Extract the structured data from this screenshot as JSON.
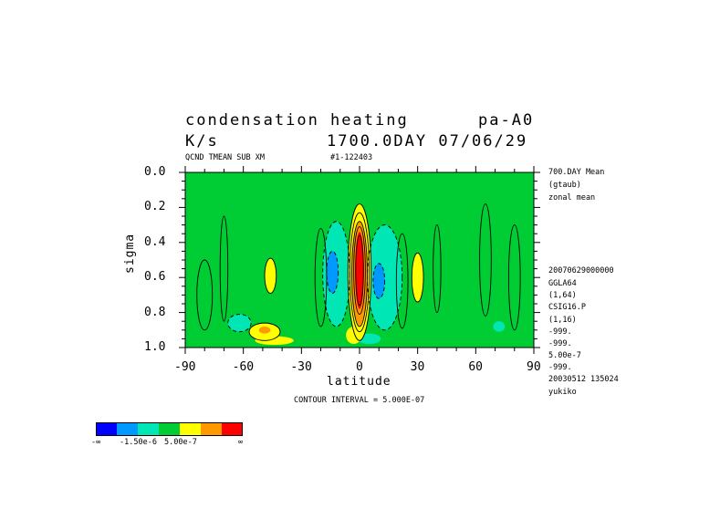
{
  "chart_data": {
    "type": "contour",
    "title_line1_left": "condensation heating",
    "title_line1_right": "pa-A0",
    "title_line2_left": "K/s",
    "title_line2_right": "1700.0DAY 07/06/29",
    "subtitle_left": "QCND TMEAN SUB XM",
    "subtitle_right": "#1-122403",
    "xlabel": "latitude",
    "ylabel": "sigma",
    "x_ticks": [
      "-90",
      "-60",
      "-30",
      "0",
      "30",
      "60",
      "90"
    ],
    "y_ticks": [
      "0.0",
      "0.2",
      "0.4",
      "0.6",
      "0.8",
      "1.0"
    ],
    "x_range": [
      -90,
      90
    ],
    "y_range": [
      0.0,
      1.0
    ],
    "y_inverted": true,
    "contour_interval_text": "CONTOUR INTERVAL = 5.000E-07",
    "right_annotations": [
      "700.DAY Mean",
      "(gtaub)",
      "zonal mean"
    ],
    "right_info": [
      "20070629000000",
      "GGLA64",
      "(1,64)",
      "CSIG16.P",
      "(1,16)",
      "-999.",
      "-999.",
      "5.00e-7",
      "-999.",
      "20030512 135024",
      "yukiko"
    ],
    "legend": {
      "colors": [
        "#0000ff",
        "#0099ff",
        "#00e6b4",
        "#00cc33",
        "#ffff00",
        "#ff9900",
        "#ff0000"
      ],
      "labels": [
        "-∞",
        "-1.50e-6",
        "5.00e-7",
        "∞"
      ]
    },
    "features": [
      {
        "kind": "heating",
        "level": "max",
        "lat": 0,
        "sigma_top": 0.2,
        "sigma_bottom": 0.95
      },
      {
        "kind": "cooling",
        "lat": -12,
        "sigma_top": 0.3,
        "sigma_bottom": 0.9
      },
      {
        "kind": "cooling",
        "lat": 13,
        "sigma_top": 0.3,
        "sigma_bottom": 0.9
      },
      {
        "kind": "heating",
        "lat": -47,
        "sigma_top": 0.5,
        "sigma_bottom": 0.7
      },
      {
        "kind": "heating",
        "lat": 33,
        "sigma_top": 0.45,
        "sigma_bottom": 0.75
      },
      {
        "kind": "heating",
        "lat": -50,
        "sigma_top": 0.85,
        "sigma_bottom": 0.97
      }
    ]
  }
}
